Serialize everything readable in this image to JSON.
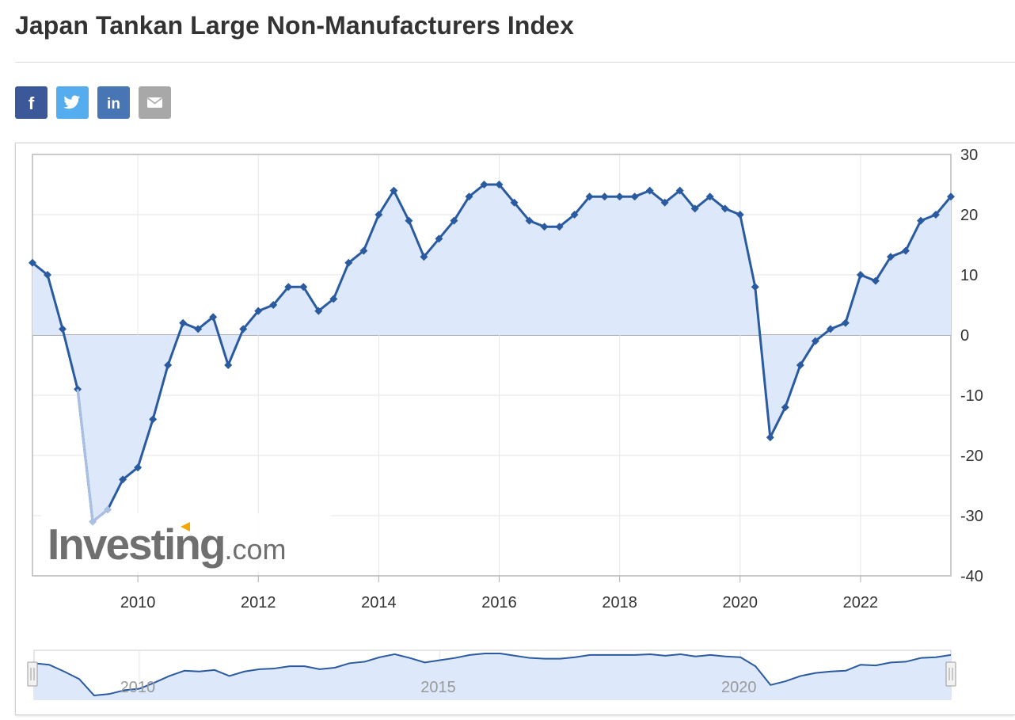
{
  "title": "Japan Tankan Large Non-Manufacturers Index",
  "share": [
    {
      "name": "facebook-icon",
      "glyph": "f",
      "color": "#3b5998"
    },
    {
      "name": "twitter-icon",
      "glyph": "",
      "color": "#55acee"
    },
    {
      "name": "linkedin-icon",
      "glyph": "in",
      "color": "#4875b4"
    },
    {
      "name": "email-icon",
      "glyph": "",
      "color": "#a8a8a8"
    }
  ],
  "watermark": {
    "brand": "Investing",
    "suffix": ".com"
  },
  "chart_data": {
    "type": "area",
    "ylim": [
      -40,
      30
    ],
    "yticks": [
      30,
      20,
      10,
      0,
      -10,
      -20,
      -30,
      -40
    ],
    "xlim": [
      2008.25,
      2023.5
    ],
    "xticks": [
      2010,
      2012,
      2014,
      2016,
      2018,
      2020,
      2022
    ],
    "navigator_ticks": [
      2010,
      2015,
      2020
    ],
    "colors": {
      "line": "#2a5aa0",
      "fill": "#dde9fb",
      "highlight": "#a9bfe3"
    },
    "series": [
      {
        "x": [
          2008.25,
          2008.5,
          2008.75,
          2009.0,
          2009.25,
          2009.5,
          2009.75,
          2010.0,
          2010.25,
          2010.5,
          2010.75,
          2011.0,
          2011.25,
          2011.5,
          2011.75,
          2012.0,
          2012.25,
          2012.5,
          2012.75,
          2013.0,
          2013.25,
          2013.5,
          2013.75,
          2014.0,
          2014.25,
          2014.5,
          2014.75,
          2015.0,
          2015.25,
          2015.5,
          2015.75,
          2016.0,
          2016.25,
          2016.5,
          2016.75,
          2017.0,
          2017.25,
          2017.5,
          2017.75,
          2018.0,
          2018.25,
          2018.5,
          2018.75,
          2019.0,
          2019.25,
          2019.5,
          2019.75,
          2020.0,
          2020.25,
          2020.5,
          2020.75,
          2021.0,
          2021.25,
          2021.5,
          2021.75,
          2022.0,
          2022.25,
          2022.5,
          2022.75,
          2023.0,
          2023.25,
          2023.5
        ],
        "values": [
          12,
          10,
          1,
          -9,
          -31,
          -29,
          -24,
          -22,
          -14,
          -5,
          2,
          1,
          3,
          -5,
          1,
          4,
          5,
          8,
          8,
          4,
          6,
          12,
          14,
          20,
          24,
          19,
          13,
          16,
          19,
          23,
          25,
          25,
          22,
          19,
          18,
          18,
          20,
          23,
          23,
          23,
          23,
          24,
          22,
          24,
          21,
          23,
          21,
          20,
          8,
          -17,
          -12,
          -5,
          -1,
          1,
          2,
          10,
          9,
          13,
          14,
          19,
          20,
          23
        ]
      }
    ]
  }
}
